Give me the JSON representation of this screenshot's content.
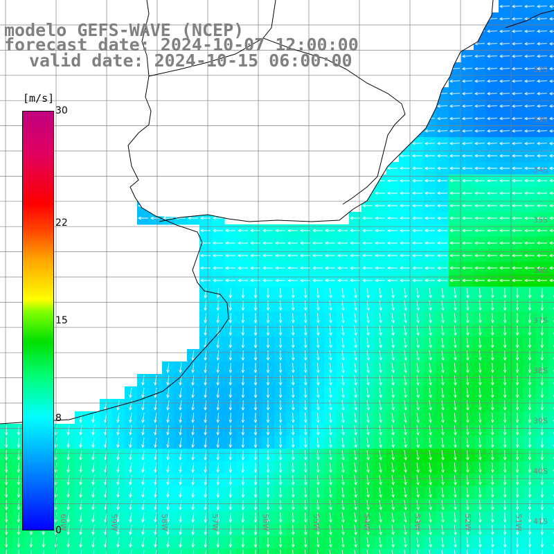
{
  "title": {
    "line1": "modelo GEFS-WAVE (NCEP)",
    "line2": "forecast date: 2024-10-07 12:00:00",
    "line3": "valid date: 2024-10-15 06:00:00"
  },
  "colorbar": {
    "unit": "[m/s]",
    "min": 0,
    "max": 30,
    "ticks": [
      {
        "label": "30",
        "value": 30
      },
      {
        "label": "22",
        "value": 22
      },
      {
        "label": "15",
        "value": 15
      },
      {
        "label": "8",
        "value": 8
      },
      {
        "label": "0",
        "value": 0
      }
    ]
  },
  "map": {
    "lat_labels": [
      {
        "label": "32S",
        "lat": -32
      },
      {
        "label": "33S",
        "lat": -33
      },
      {
        "label": "34S",
        "lat": -34
      },
      {
        "label": "35S",
        "lat": -35
      },
      {
        "label": "36S",
        "lat": -36
      },
      {
        "label": "37S",
        "lat": -37
      },
      {
        "label": "38S",
        "lat": -38
      },
      {
        "label": "39S",
        "lat": -39
      },
      {
        "label": "40S",
        "lat": -40
      },
      {
        "label": "41S",
        "lat": -41
      }
    ],
    "lon_labels": [
      {
        "label": "60W",
        "lon": -60
      },
      {
        "label": "59W",
        "lon": -59
      },
      {
        "label": "58W",
        "lon": -58
      },
      {
        "label": "57W",
        "lon": -57
      },
      {
        "label": "56W",
        "lon": -56
      },
      {
        "label": "55W",
        "lon": -55
      },
      {
        "label": "54W",
        "lon": -54
      },
      {
        "label": "53W",
        "lon": -53
      },
      {
        "label": "52W",
        "lon": -52
      },
      {
        "label": "51W",
        "lon": -51
      }
    ],
    "colors": {
      "land": "#ffffff",
      "coast": "#000000",
      "grid": "#808080",
      "arrows": "#ffffff"
    }
  }
}
